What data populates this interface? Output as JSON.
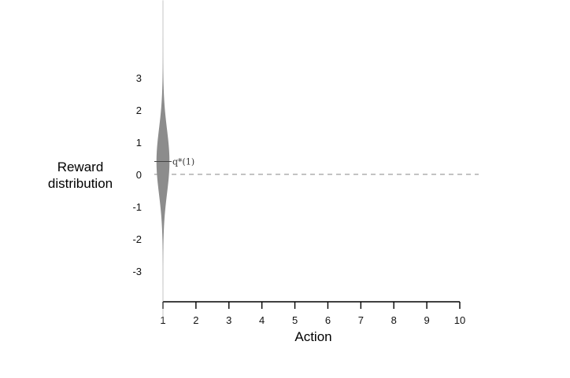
{
  "chart_data": {
    "type": "violin",
    "xlabel": "Action",
    "ylabel_line1": "Reward",
    "ylabel_line2": "distribution",
    "x_ticks": [
      1,
      2,
      3,
      4,
      5,
      6,
      7,
      8,
      9,
      10
    ],
    "y_ticks": [
      3,
      2,
      1,
      0,
      -1,
      -2,
      -3
    ],
    "ylim": [
      -3.0,
      4.8
    ],
    "xlim": [
      1,
      10
    ],
    "reference_line": {
      "y": 0,
      "style": "dashed"
    },
    "violins": [
      {
        "action": 1,
        "mean": 0.4,
        "std": 1,
        "label": "q*(1)"
      }
    ],
    "colors": {
      "violin": "#8c8c8c",
      "axis": "#000000",
      "dashed_line": "#888888",
      "mean_line": "#444444"
    }
  }
}
